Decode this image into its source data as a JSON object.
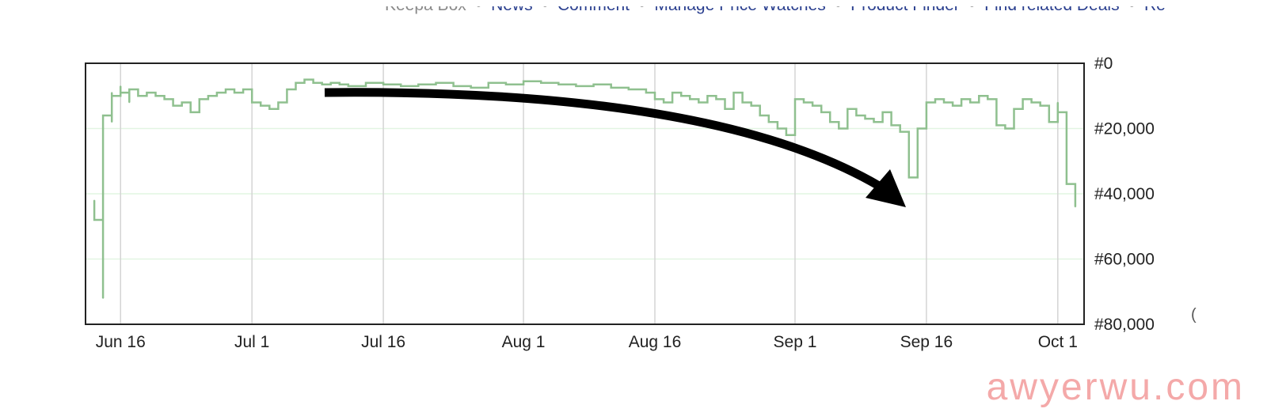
{
  "topnav": {
    "items": [
      "Keepa Box",
      "News",
      "Comment",
      "Manage Price Watches",
      "Product Finder",
      "Find related Deals",
      "Re"
    ],
    "separator": "•"
  },
  "watermark": "awyerwu.com",
  "colors": {
    "series": "#8fc08f",
    "gridlines": "#d4d4d4",
    "hgridlines": "#e2f5e2",
    "arrow": "#000000",
    "watermark": "#f4a9a9"
  },
  "chart_data": {
    "type": "line",
    "ylabel": "",
    "xlabel": "",
    "y_inverted": true,
    "ylim": [
      0,
      80000
    ],
    "yticks": [
      0,
      20000,
      40000,
      60000,
      80000
    ],
    "ytick_labels": [
      "#0",
      "#20,000",
      "#40,000",
      "#60,000",
      "#80,000"
    ],
    "xlim": [
      "2024-06-12",
      "2024-10-04"
    ],
    "xticks": [
      "2024-06-16",
      "2024-07-01",
      "2024-07-16",
      "2024-08-01",
      "2024-08-16",
      "2024-09-01",
      "2024-09-16",
      "2024-10-01"
    ],
    "xtick_labels": [
      "Jun 16",
      "Jul 1",
      "Jul 16",
      "Aug 1",
      "Aug 16",
      "Sep 1",
      "Sep 16",
      "Oct 1"
    ],
    "step": true,
    "series": [
      {
        "x": [
          "2024-06-13",
          "2024-06-13",
          "2024-06-14",
          "2024-06-14",
          "2024-06-14",
          "2024-06-14",
          "2024-06-15",
          "2024-06-15",
          "2024-06-15",
          "2024-06-15",
          "2024-06-16",
          "2024-06-16",
          "2024-06-17",
          "2024-06-17",
          "2024-06-18",
          "2024-06-19",
          "2024-06-20",
          "2024-06-21",
          "2024-06-22",
          "2024-06-23",
          "2024-06-24",
          "2024-06-25",
          "2024-06-26",
          "2024-06-27",
          "2024-06-28",
          "2024-06-29",
          "2024-06-30",
          "2024-07-01",
          "2024-07-02",
          "2024-07-03",
          "2024-07-04",
          "2024-07-05",
          "2024-07-06",
          "2024-07-07",
          "2024-07-08",
          "2024-07-09",
          "2024-07-10",
          "2024-07-11",
          "2024-07-12",
          "2024-07-14",
          "2024-07-16",
          "2024-07-18",
          "2024-07-20",
          "2024-07-22",
          "2024-07-24",
          "2024-07-26",
          "2024-07-28",
          "2024-07-30",
          "2024-08-01",
          "2024-08-03",
          "2024-08-05",
          "2024-08-07",
          "2024-08-09",
          "2024-08-11",
          "2024-08-13",
          "2024-08-15",
          "2024-08-16",
          "2024-08-17",
          "2024-08-18",
          "2024-08-19",
          "2024-08-20",
          "2024-08-21",
          "2024-08-22",
          "2024-08-23",
          "2024-08-24",
          "2024-08-25",
          "2024-08-26",
          "2024-08-27",
          "2024-08-28",
          "2024-08-29",
          "2024-08-30",
          "2024-08-31",
          "2024-09-01",
          "2024-09-02",
          "2024-09-03",
          "2024-09-04",
          "2024-09-05",
          "2024-09-06",
          "2024-09-07",
          "2024-09-08",
          "2024-09-09",
          "2024-09-10",
          "2024-09-11",
          "2024-09-12",
          "2024-09-13",
          "2024-09-14",
          "2024-09-14",
          "2024-09-15",
          "2024-09-15",
          "2024-09-16",
          "2024-09-17",
          "2024-09-18",
          "2024-09-19",
          "2024-09-20",
          "2024-09-21",
          "2024-09-22",
          "2024-09-23",
          "2024-09-24",
          "2024-09-25",
          "2024-09-26",
          "2024-09-27",
          "2024-09-28",
          "2024-09-29",
          "2024-09-30",
          "2024-10-01",
          "2024-10-01",
          "2024-10-02",
          "2024-10-02",
          "2024-10-03"
        ],
        "y": [
          42000,
          48000,
          72000,
          22000,
          27000,
          16000,
          18000,
          10000,
          9000,
          10000,
          7000,
          9000,
          12000,
          8000,
          10000,
          9000,
          10000,
          11000,
          13000,
          12000,
          15000,
          11000,
          10000,
          9000,
          8000,
          9000,
          8000,
          12000,
          13000,
          14000,
          12000,
          8000,
          6000,
          5000,
          6000,
          6500,
          6000,
          6500,
          7000,
          6000,
          6500,
          7000,
          6500,
          6000,
          7000,
          7500,
          6000,
          6500,
          5500,
          6000,
          6500,
          7000,
          6500,
          7500,
          8000,
          9000,
          11000,
          12000,
          9000,
          10000,
          11000,
          12000,
          10000,
          11000,
          14000,
          9000,
          12000,
          13000,
          16000,
          18000,
          20000,
          22000,
          11000,
          12000,
          13000,
          15000,
          18000,
          20000,
          14000,
          16000,
          17000,
          18000,
          15000,
          19000,
          21000,
          22000,
          35000,
          25000,
          20000,
          12000,
          11000,
          12000,
          13000,
          11000,
          12000,
          10000,
          11000,
          19000,
          20000,
          14000,
          11000,
          12000,
          13000,
          18000,
          12000,
          15000,
          28000,
          37000,
          44000
        ]
      }
    ]
  }
}
